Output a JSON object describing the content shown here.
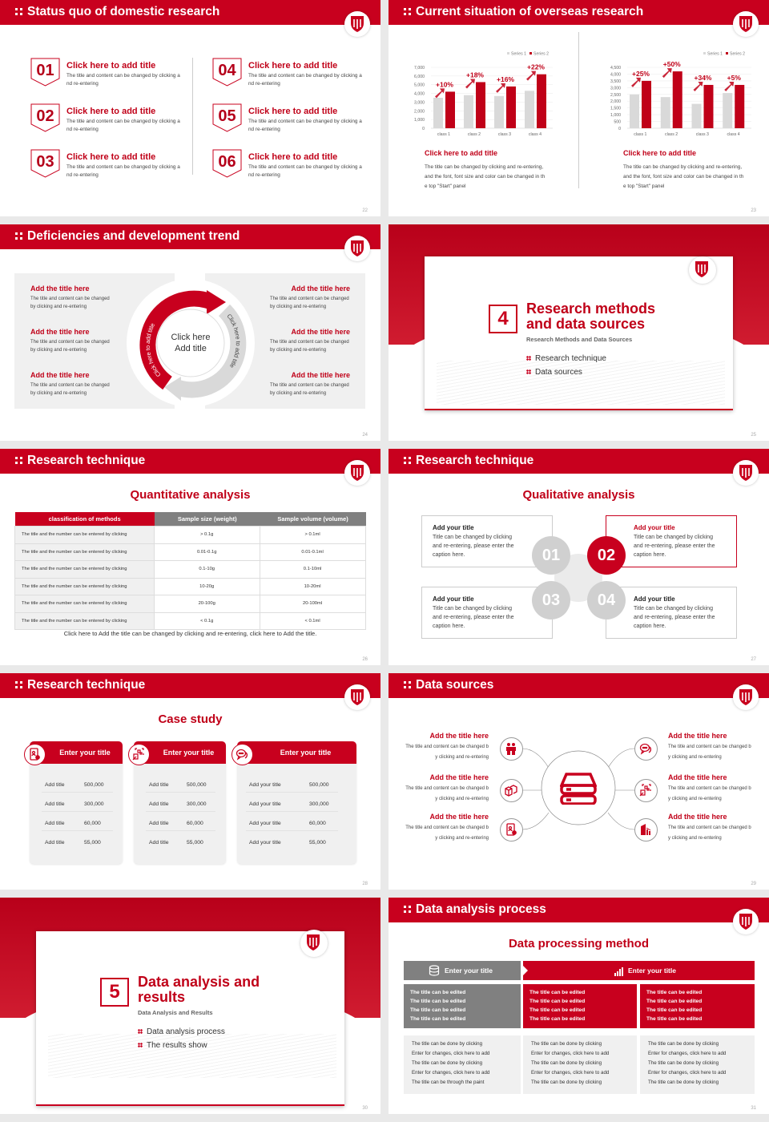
{
  "colors": {
    "primary": "#c8001e",
    "gray": "#808080",
    "light": "#f0f0f0"
  },
  "s22": {
    "title": "Status quo of domestic research",
    "page": "22",
    "items": [
      {
        "num": "01",
        "title": "Click here to add title",
        "text": "The title and content can be changed by clicking and re-entering"
      },
      {
        "num": "02",
        "title": "Click here to add title",
        "text": "The title and content can be changed by clicking and re-entering"
      },
      {
        "num": "03",
        "title": "Click here to add title",
        "text": "The title and content can be changed by clicking and re-entering"
      },
      {
        "num": "04",
        "title": "Click here to add title",
        "text": "The title and content can be changed by clicking and re-entering"
      },
      {
        "num": "05",
        "title": "Click here to add title",
        "text": "The title and content can be changed by clicking and re-entering"
      },
      {
        "num": "06",
        "title": "Click here to add title",
        "text": "The title and content can be changed by clicking and re-entering"
      }
    ]
  },
  "s23": {
    "title": "Current situation of overseas research",
    "page": "23",
    "captions": [
      {
        "title": "Click here to add title",
        "text": "The title can be changed by clicking and re-entering, and the font, font size and color can be changed in the top \"Start\" panel"
      },
      {
        "title": "Click here to add title",
        "text": "The title can be changed by clicking and re-entering, and the font, font size and color can be changed in the top \"Start\" panel"
      }
    ]
  },
  "chart_data": [
    {
      "type": "bar",
      "categories": [
        "class 1",
        "class 2",
        "class 3",
        "class 4"
      ],
      "series": [
        {
          "name": "Series 1",
          "values": [
            3500,
            3800,
            3700,
            4300
          ],
          "color": "#d9d9d9"
        },
        {
          "name": "Series 2",
          "values": [
            4200,
            5300,
            4800,
            6200
          ],
          "color": "#c00018"
        }
      ],
      "annotations": [
        "+10%",
        "+18%",
        "+16%",
        "+22%"
      ],
      "ylim": [
        0,
        7000
      ],
      "yticks": [
        "0",
        "1,000",
        "2,000",
        "3,000",
        "4,000",
        "5,000",
        "6,000",
        "7,000"
      ],
      "legend": "top-right",
      "grid": true
    },
    {
      "type": "bar",
      "categories": [
        "class 1",
        "class 2",
        "class 3",
        "class 4"
      ],
      "series": [
        {
          "name": "Series 1",
          "values": [
            2500,
            2300,
            1800,
            2600
          ],
          "color": "#d9d9d9"
        },
        {
          "name": "Series 2",
          "values": [
            3500,
            4200,
            3200,
            3200
          ],
          "color": "#c00018"
        }
      ],
      "annotations": [
        "+25%",
        "+50%",
        "+34%",
        "+5%"
      ],
      "ylim": [
        0,
        4500
      ],
      "yticks": [
        "0",
        "500",
        "1,000",
        "1,500",
        "2,000",
        "2,500",
        "3,000",
        "3,500",
        "4,000",
        "4,500"
      ],
      "legend": "top-right",
      "grid": true
    }
  ],
  "s24": {
    "title": "Deficiencies and development trend",
    "page": "24",
    "center": [
      "Click here",
      "Add title"
    ],
    "arc_red": "Click here to add title",
    "arc_gray": "Click here to add title",
    "items": [
      {
        "title": "Add the title here",
        "text": "The title and content can be changed by clicking and re-entering"
      },
      {
        "title": "Add the title here",
        "text": "The title and content can be changed by clicking and re-entering"
      },
      {
        "title": "Add the title here",
        "text": "The title and content can be changed by clicking and re-entering"
      },
      {
        "title": "Add the title here",
        "text": "The title and content can be changed by clicking and re-entering"
      },
      {
        "title": "Add the title here",
        "text": "The title and content can be changed by clicking and re-entering"
      },
      {
        "title": "Add the title here",
        "text": "The title and content can be changed by clicking and re-entering"
      }
    ]
  },
  "s25": {
    "num": "4",
    "title": "Research methods and data sources",
    "subtitle": "Research Methods and Data Sources",
    "bullets": [
      "Research technique",
      "Data sources"
    ],
    "page": "25"
  },
  "s26": {
    "title": "Research technique",
    "sub": "Quantitative analysis",
    "page": "26",
    "headers": [
      "classification of methods",
      "Sample size (weight)",
      "Sample volume (volume)"
    ],
    "rows": [
      [
        "The title and the number can be entered by clicking",
        "> 0.1g",
        "> 0.1ml"
      ],
      [
        "The title and the number can be entered by clicking",
        "0.01-0.1g",
        "0.01-0.1ml"
      ],
      [
        "The title and the number can be entered by clicking",
        "0.1-10g",
        "0.1-10ml"
      ],
      [
        "The title and the number can be entered by clicking",
        "10-20g",
        "10-20ml"
      ],
      [
        "The title and the number can be entered by clicking",
        "20-100g",
        "20-100ml"
      ],
      [
        "The title and the number can be entered by clicking",
        "< 0.1g",
        "< 0.1ml"
      ]
    ],
    "caption": "Click here to Add the title can be changed by clicking and re-entering, click here to Add the title."
  },
  "s27": {
    "title": "Research technique",
    "sub": "Qualitative analysis",
    "page": "27",
    "boxes": [
      {
        "num": "01",
        "title": "Add your title",
        "text": "Title can be changed by clicking and re-entering, please enter the caption here."
      },
      {
        "num": "02",
        "title": "Add your title",
        "text": "Title can be changed by clicking and re-entering, please enter the caption here."
      },
      {
        "num": "03",
        "title": "Add your title",
        "text": "Title can be changed by clicking and re-entering, please enter the caption here."
      },
      {
        "num": "04",
        "title": "Add your title",
        "text": "Title can be changed by clicking and re-entering, please enter the caption here."
      }
    ]
  },
  "s28": {
    "title": "Research technique",
    "sub": "Case study",
    "page": "28",
    "cards": [
      {
        "icon": "phone-user-icon",
        "title": "Enter your title",
        "rows": [
          [
            "Add title",
            "500,000"
          ],
          [
            "Add title",
            "300,000"
          ],
          [
            "Add title",
            "60,000"
          ],
          [
            "Add title",
            "55,000"
          ]
        ]
      },
      {
        "icon": "qr-scan-icon",
        "title": "Enter your title",
        "rows": [
          [
            "Add title",
            "500,000"
          ],
          [
            "Add title",
            "300,000"
          ],
          [
            "Add title",
            "60,000"
          ],
          [
            "Add title",
            "55,000"
          ]
        ]
      },
      {
        "icon": "chat-bubbles-icon",
        "title": "Enter your title",
        "rows": [
          [
            "Add your title",
            "500,000"
          ],
          [
            "Add your title",
            "300,000"
          ],
          [
            "Add your title",
            "60,000"
          ],
          [
            "Add your title",
            "55,000"
          ]
        ]
      }
    ]
  },
  "s29": {
    "title": "Data sources",
    "page": "29",
    "center_icon": "server-icon",
    "items": [
      {
        "icon": "people-icon",
        "title": "Add the title here",
        "text": "The title and content can be changed by clicking and re-entering"
      },
      {
        "icon": "boxes-icon",
        "title": "Add the title here",
        "text": "The title and content can be changed by clicking and re-entering"
      },
      {
        "icon": "phone-user-icon",
        "title": "Add the title here",
        "text": "The title and content can be changed by clicking and re-entering"
      },
      {
        "icon": "chat-bubbles-icon",
        "title": "Add the title here",
        "text": "The title and content can be changed by clicking and re-entering"
      },
      {
        "icon": "qr-scan-icon",
        "title": "Add the title here",
        "text": "The title and content can be changed by clicking and re-entering"
      },
      {
        "icon": "building-chart-icon",
        "title": "Add the title here",
        "text": "The title and content can be changed by clicking and re-entering"
      }
    ]
  },
  "s30": {
    "num": "5",
    "title": "Data analysis and results",
    "subtitle": "Data Analysis and Results",
    "bullets": [
      "Data analysis process",
      "The results show"
    ],
    "page": "30"
  },
  "s31": {
    "title": "Data analysis process",
    "sub": "Data processing method",
    "page": "31",
    "head_left": "Enter your title",
    "head_right": "Enter your title",
    "top": [
      [
        "The title can be edited",
        "The title can be edited",
        "The title can be edited",
        "The title can be edited"
      ],
      [
        "The title can be edited",
        "The title can be edited",
        "The title can be edited",
        "The title can be edited"
      ],
      [
        "The title can be edited",
        "The title can be edited",
        "The title can be edited",
        "The title can be edited"
      ]
    ],
    "bottom": [
      [
        "The title can be done by clicking",
        "Enter for changes, click here to add",
        "The title can be done by clicking",
        "Enter for changes, click here to add",
        "The title can be through the paint"
      ],
      [
        "The title can be done by clicking",
        "Enter for changes, click here to add",
        "The title can be done by clicking",
        "Enter for changes, click here to add",
        "The title can be done by clicking"
      ],
      [
        "The title can be done by clicking",
        "Enter for changes, click here to add",
        "The title can be done by clicking",
        "Enter for changes, click here to add",
        "The title can be done by clicking"
      ]
    ]
  }
}
